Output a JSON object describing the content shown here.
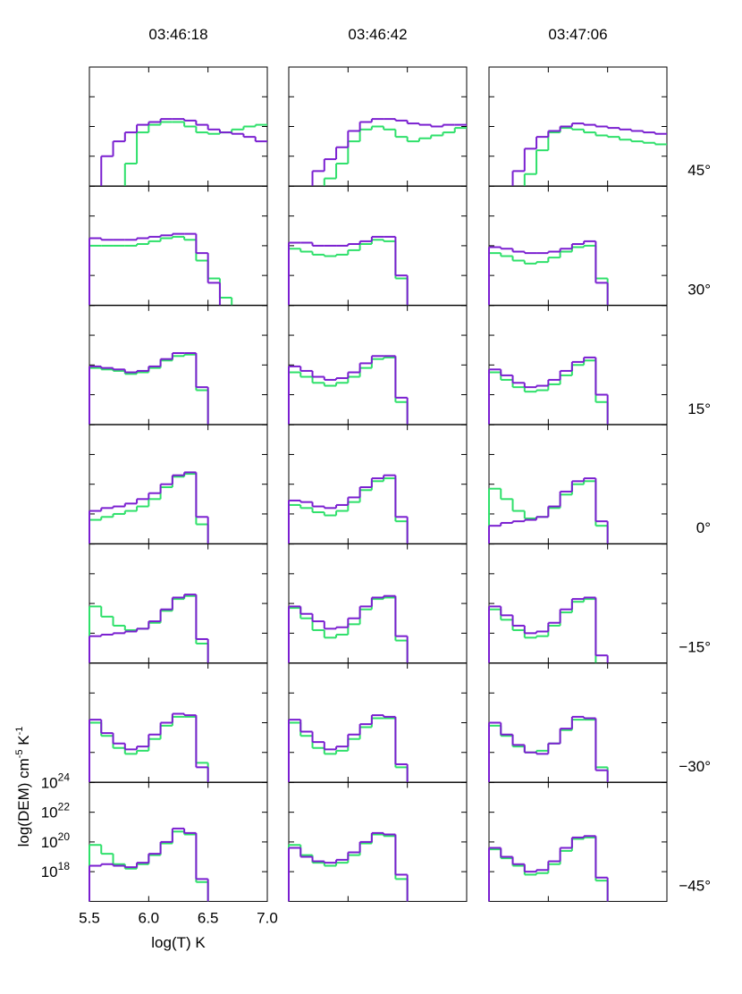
{
  "column_titles": [
    "03:46:18",
    "03:46:42",
    "03:47:06"
  ],
  "row_labels": [
    "45°",
    "30°",
    "15°",
    "0°",
    "−15°",
    "−30°",
    "−45°"
  ],
  "x_label": "log(T) K",
  "y_label": [
    "log(DEM) cm",
    "-5",
    " K",
    "-1"
  ],
  "axes": {
    "xlim": [
      5.5,
      7.0
    ],
    "ylim": [
      1e+16,
      1e+24
    ],
    "ylog": true,
    "bins": [
      5.5,
      5.6,
      5.7,
      5.8,
      5.9,
      6.0,
      6.1,
      6.2,
      6.3,
      6.4,
      6.5,
      6.6,
      6.7,
      6.8,
      6.9,
      7.0
    ],
    "xticks": [
      5.5,
      {
        "value": 6,
        "label": "6.0"
      },
      6.5,
      {
        "value": 7,
        "label": "7.0"
      }
    ],
    "yticks": [
      {
        "value": 1e+18,
        "label": "10",
        "exp": "18"
      },
      {
        "value": 1e+20,
        "label": "10",
        "exp": "20"
      },
      {
        "value": 1e+22,
        "label": "10",
        "exp": "22"
      },
      {
        "value": 1e+24,
        "label": "10",
        "exp": "24"
      }
    ]
  },
  "chart_data": [
    {
      "type": "step",
      "series": [
        {
          "color": "#7a1fd0",
          "values": [
            null,
            1e+18,
            1e+19,
            4e+19,
            1.3e+20,
            2e+20,
            3.2e+20,
            3.2e+20,
            2.5e+20,
            1.3e+20,
            6.3e+19,
            4e+19,
            3.2e+19,
            2e+19,
            1e+19
          ]
        },
        {
          "color": "#2ee06a",
          "values": [
            null,
            null,
            null,
            3.2e+17,
            4e+19,
            1.3e+20,
            2e+20,
            2e+20,
            1e+20,
            4e+19,
            3.2e+19,
            4e+19,
            6.3e+19,
            1e+20,
            1.3e+20
          ]
        }
      ]
    },
    {
      "type": "step",
      "series": [
        {
          "color": "#7a1fd0",
          "values": [
            null,
            null,
            1e+17,
            6.3e+17,
            4e+18,
            5e+19,
            2e+20,
            3.2e+20,
            3.2e+20,
            2.5e+20,
            1.6e+20,
            1.3e+20,
            1e+20,
            1.3e+20,
            1.3e+20
          ]
        },
        {
          "color": "#2ee06a",
          "values": [
            null,
            null,
            null,
            3.2e+16,
            3.2e+17,
            1e+19,
            6.3e+19,
            1e+20,
            6.3e+19,
            2e+19,
            1e+19,
            1.6e+19,
            2.5e+19,
            4e+19,
            8e+19
          ]
        }
      ]
    },
    {
      "type": "step",
      "series": [
        {
          "color": "#7a1fd0",
          "values": [
            null,
            null,
            1e+17,
            3.2e+18,
            2e+19,
            5e+19,
            1e+20,
            1.6e+20,
            1.3e+20,
            1e+20,
            8e+19,
            6.3e+19,
            5e+19,
            4e+19,
            3.2e+19
          ]
        },
        {
          "color": "#2ee06a",
          "values": [
            null,
            null,
            null,
            6.3e+16,
            2.5e+18,
            4e+19,
            8e+19,
            6.3e+19,
            4e+19,
            2.5e+19,
            2e+19,
            1.3e+19,
            1e+19,
            8e+18,
            6.3e+18
          ]
        }
      ]
    },
    {
      "type": "step",
      "series": [
        {
          "color": "#7a1fd0",
          "values": [
            3.2e+20,
            2.5e+20,
            2.5e+20,
            2.5e+20,
            3.2e+20,
            4e+20,
            5e+20,
            6.3e+20,
            6.3e+20,
            3.2e+19,
            3.2e+17,
            null,
            null,
            null,
            null
          ]
        },
        {
          "color": "#2ee06a",
          "values": [
            1e+20,
            1e+20,
            1e+20,
            1e+20,
            1.3e+20,
            2e+20,
            3.2e+20,
            4e+20,
            2.5e+20,
            1e+19,
            6.3e+17,
            3.2e+16,
            null,
            null,
            null
          ]
        }
      ]
    },
    {
      "type": "step",
      "series": [
        {
          "color": "#7a1fd0",
          "values": [
            1.6e+20,
            1.6e+20,
            1e+20,
            1e+20,
            1e+20,
            1.3e+20,
            2e+20,
            4e+20,
            4e+20,
            1e+18,
            null,
            null,
            null,
            null,
            null
          ]
        },
        {
          "color": "#2ee06a",
          "values": [
            6.3e+19,
            4e+19,
            2.5e+19,
            2e+19,
            2.5e+19,
            5e+19,
            1.3e+20,
            2.5e+20,
            2e+20,
            6.3e+17,
            null,
            null,
            null,
            null,
            null
          ]
        }
      ]
    },
    {
      "type": "step",
      "series": [
        {
          "color": "#7a1fd0",
          "values": [
            8e+19,
            6.3e+19,
            4e+19,
            3.2e+19,
            3.2e+19,
            4e+19,
            6.3e+19,
            1.3e+20,
            2e+20,
            3.2e+17,
            null,
            null,
            null,
            null,
            null
          ]
        },
        {
          "color": "#2ee06a",
          "values": [
            3.2e+19,
            2e+19,
            1e+19,
            6.3e+18,
            8e+18,
            1.6e+19,
            4e+19,
            8e+19,
            1e+20,
            6.3e+17,
            null,
            null,
            null,
            null,
            null
          ]
        }
      ]
    },
    {
      "type": "step",
      "series": [
        {
          "color": "#7a1fd0",
          "values": [
            8e+19,
            6.3e+19,
            5e+19,
            3.2e+19,
            4e+19,
            8e+19,
            2.5e+20,
            6.3e+20,
            6.3e+20,
            3.2e+18,
            null,
            null,
            null,
            null,
            null
          ]
        },
        {
          "color": "#2ee06a",
          "values": [
            6.3e+19,
            5e+19,
            4e+19,
            2.5e+19,
            3.2e+19,
            6.3e+19,
            2e+20,
            4e+20,
            5e+20,
            2e+18,
            null,
            null,
            null,
            null,
            null
          ]
        }
      ]
    },
    {
      "type": "step",
      "series": [
        {
          "color": "#7a1fd0",
          "values": [
            8e+19,
            4e+19,
            1.6e+19,
            1e+19,
            1.3e+19,
            3.2e+19,
            1.3e+20,
            4e+20,
            4e+20,
            6.3e+17,
            null,
            null,
            null,
            null,
            null
          ]
        },
        {
          "color": "#2ee06a",
          "values": [
            3.2e+19,
            1.6e+19,
            6.3e+18,
            4e+18,
            6.3e+18,
            1.6e+19,
            6.3e+19,
            2.5e+20,
            3.2e+20,
            3.2e+17,
            null,
            null,
            null,
            null,
            null
          ]
        }
      ]
    },
    {
      "type": "step",
      "series": [
        {
          "color": "#7a1fd0",
          "values": [
            5e+19,
            2e+19,
            6.3e+18,
            3.2e+18,
            4e+18,
            1e+19,
            4e+19,
            1.6e+20,
            3.2e+20,
            1e+18,
            null,
            null,
            null,
            null,
            null
          ]
        },
        {
          "color": "#2ee06a",
          "values": [
            3.2e+19,
            1e+19,
            3.2e+18,
            1.6e+18,
            2e+18,
            5e+18,
            2e+19,
            1e+20,
            2e+20,
            3.2e+17,
            null,
            null,
            null,
            null,
            null
          ]
        }
      ]
    },
    {
      "type": "step",
      "series": [
        {
          "color": "#7a1fd0",
          "values": [
            1.6e+18,
            2.5e+18,
            3.2e+18,
            5e+18,
            1e+19,
            2.5e+19,
            1e+20,
            4e+20,
            6.3e+20,
            6.3e+17,
            null,
            null,
            null,
            null,
            null
          ]
        },
        {
          "color": "#2ee06a",
          "values": [
            4e+17,
            6.3e+17,
            1e+18,
            1.6e+18,
            3.2e+18,
            1e+19,
            6.3e+19,
            3.2e+20,
            5e+20,
            2e+17,
            null,
            null,
            null,
            null,
            null
          ]
        }
      ]
    },
    {
      "type": "step",
      "series": [
        {
          "color": "#7a1fd0",
          "values": [
            8e+18,
            6.3e+18,
            3.2e+18,
            2.5e+18,
            4e+18,
            1.3e+19,
            6.3e+19,
            2.5e+20,
            4e+20,
            6.3e+17,
            null,
            null,
            null,
            null,
            null
          ]
        },
        {
          "color": "#2ee06a",
          "values": [
            4e+18,
            2.5e+18,
            1.3e+18,
            8e+17,
            1.6e+18,
            6.3e+18,
            4e+19,
            1.6e+20,
            2.5e+20,
            3.2e+17,
            null,
            null,
            null,
            null,
            null
          ]
        }
      ]
    },
    {
      "type": "step",
      "series": [
        {
          "color": "#7a1fd0",
          "values": [
            1.6e+17,
            2.5e+17,
            3.2e+17,
            4e+17,
            6.3e+17,
            3.2e+18,
            3.2e+19,
            1.6e+20,
            2.5e+20,
            3.2e+17,
            null,
            null,
            null,
            null,
            null
          ]
        },
        {
          "color": "#2ee06a",
          "values": [
            5e+19,
            1e+19,
            1.6e+18,
            5e+17,
            6.3e+17,
            2.5e+18,
            2e+19,
            1e+20,
            1.6e+20,
            1.6e+17,
            null,
            null,
            null,
            null,
            null
          ]
        }
      ]
    },
    {
      "type": "step",
      "series": [
        {
          "color": "#7a1fd0",
          "values": [
            6.3e+17,
            8e+17,
            1e+18,
            1.3e+18,
            2e+18,
            6.3e+18,
            4e+19,
            2.5e+20,
            4e+20,
            4e+17,
            null,
            null,
            null,
            null,
            null
          ]
        },
        {
          "color": "#2ee06a",
          "values": [
            6.3e+19,
            1.3e+19,
            3.2e+18,
            1.6e+18,
            2e+18,
            5e+18,
            3.2e+19,
            2e+20,
            3.2e+20,
            2e+17,
            null,
            null,
            null,
            null,
            null
          ]
        }
      ]
    },
    {
      "type": "step",
      "series": [
        {
          "color": "#7a1fd0",
          "values": [
            6.3e+19,
            2e+19,
            6.3e+18,
            2e+18,
            2.5e+18,
            1e+19,
            6.3e+19,
            2.5e+20,
            3.2e+20,
            6.3e+17,
            null,
            null,
            null,
            null,
            null
          ]
        },
        {
          "color": "#2ee06a",
          "values": [
            5e+19,
            1e+19,
            1.6e+18,
            5e+17,
            8e+17,
            4e+18,
            4e+19,
            2e+20,
            2.5e+20,
            3.2e+17,
            null,
            null,
            null,
            null,
            null
          ]
        }
      ]
    },
    {
      "type": "step",
      "series": [
        {
          "color": "#7a1fd0",
          "values": [
            6.3e+19,
            1.6e+19,
            3.2e+18,
            1e+18,
            1.3e+18,
            5e+18,
            4e+19,
            2e+20,
            2.5e+20,
            3.2e+16,
            null,
            null,
            null,
            null,
            null
          ]
        },
        {
          "color": "#2ee06a",
          "values": [
            4e+19,
            8e+18,
            1.6e+18,
            5e+17,
            6.3e+17,
            3.2e+18,
            2.5e+19,
            1.3e+20,
            2e+20,
            null,
            null,
            null,
            null,
            null,
            null
          ]
        }
      ]
    },
    {
      "type": "step",
      "series": [
        {
          "color": "#7a1fd0",
          "values": [
            1.6e+20,
            2e+19,
            4e+18,
            1.6e+18,
            2.5e+18,
            1.6e+19,
            1e+20,
            4e+20,
            3.2e+20,
            1e+17,
            null,
            null,
            null,
            null,
            null
          ]
        },
        {
          "color": "#2ee06a",
          "values": [
            1e+20,
            1.3e+19,
            2e+18,
            8e+17,
            1.3e+18,
            8e+18,
            6.3e+19,
            2.5e+20,
            2.5e+20,
            2e+17,
            null,
            null,
            null,
            null,
            null
          ]
        }
      ]
    },
    {
      "type": "step",
      "series": [
        {
          "color": "#7a1fd0",
          "values": [
            1.6e+20,
            2.5e+19,
            5e+18,
            1.6e+18,
            2.5e+18,
            1.6e+19,
            8e+19,
            3.2e+20,
            2.5e+20,
            1.6e+17,
            null,
            null,
            null,
            null,
            null
          ]
        },
        {
          "color": "#2ee06a",
          "values": [
            1e+20,
            1.3e+19,
            2e+18,
            8e+17,
            1.3e+18,
            8e+18,
            5e+19,
            2e+20,
            2e+20,
            1e+17,
            null,
            null,
            null,
            null,
            null
          ]
        }
      ]
    },
    {
      "type": "step",
      "series": [
        {
          "color": "#7a1fd0",
          "values": [
            1e+20,
            1.6e+19,
            3.2e+18,
            1e+18,
            8e+17,
            4e+18,
            4e+19,
            2.5e+20,
            2e+20,
            6.3e+16,
            null,
            null,
            null,
            null,
            null
          ]
        },
        {
          "color": "#2ee06a",
          "values": [
            6.3e+19,
            1.3e+19,
            2.5e+18,
            1e+18,
            1.3e+18,
            4e+18,
            3.2e+19,
            1.6e+20,
            1.6e+20,
            1e+17,
            null,
            null,
            null,
            null,
            null
          ]
        }
      ]
    },
    {
      "type": "step",
      "series": [
        {
          "color": "#7a1fd0",
          "values": [
            2.5e+18,
            3.2e+18,
            2.5e+18,
            2e+18,
            4e+18,
            1.6e+19,
            1e+20,
            8e+20,
            4e+20,
            3.2e+17,
            null,
            null,
            null,
            null,
            null
          ]
        },
        {
          "color": "#2ee06a",
          "values": [
            6.3e+19,
            1.6e+19,
            3.2e+18,
            1.6e+18,
            3.2e+18,
            1.3e+19,
            8e+19,
            5e+20,
            3.2e+20,
            2e+17,
            null,
            null,
            null,
            null,
            null
          ]
        }
      ]
    },
    {
      "type": "step",
      "series": [
        {
          "color": "#7a1fd0",
          "values": [
            4e+19,
            1e+19,
            5e+18,
            4e+18,
            6.3e+18,
            2e+19,
            1e+20,
            4e+20,
            3.2e+20,
            6.3e+17,
            null,
            null,
            null,
            null,
            null
          ]
        },
        {
          "color": "#2ee06a",
          "values": [
            6.3e+19,
            1.3e+19,
            4e+18,
            2.5e+18,
            4e+18,
            1.3e+19,
            8e+19,
            3.2e+20,
            2.5e+20,
            3.2e+17,
            null,
            null,
            null,
            null,
            null
          ]
        }
      ]
    },
    {
      "type": "step",
      "series": [
        {
          "color": "#7a1fd0",
          "values": [
            4e+19,
            1e+19,
            3.2e+18,
            1e+18,
            1.3e+18,
            5e+18,
            4e+19,
            2e+20,
            2.5e+20,
            4e+17,
            null,
            null,
            null,
            null,
            null
          ]
        },
        {
          "color": "#2ee06a",
          "values": [
            3.2e+19,
            8e+18,
            2.5e+18,
            6.3e+17,
            8e+17,
            3.2e+18,
            2.5e+19,
            1.6e+20,
            2e+20,
            2.5e+17,
            null,
            null,
            null,
            null,
            null
          ]
        }
      ]
    }
  ]
}
